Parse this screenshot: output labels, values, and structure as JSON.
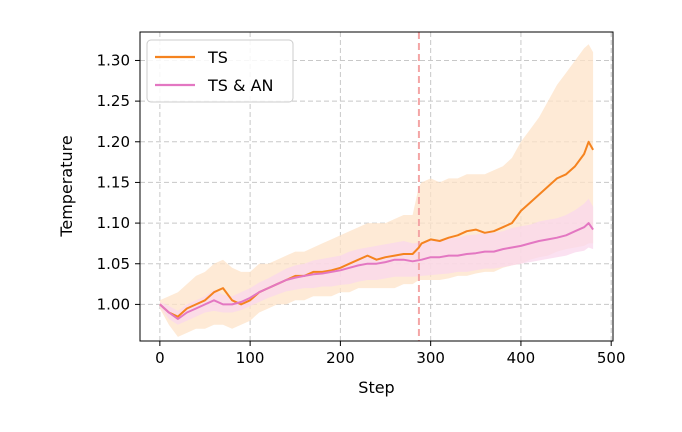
{
  "chart_data": {
    "type": "line",
    "xlabel": "Step",
    "ylabel": "Temperature",
    "xlim": [
      -22,
      502
    ],
    "ylim": [
      0.955,
      1.335
    ],
    "xticks": [
      0,
      100,
      200,
      300,
      400,
      500
    ],
    "xtick_labels": [
      "0",
      "100",
      "200",
      "300",
      "400",
      "500"
    ],
    "yticks": [
      1.0,
      1.05,
      1.1,
      1.15,
      1.2,
      1.25,
      1.3
    ],
    "ytick_labels": [
      "1.00",
      "1.05",
      "1.10",
      "1.15",
      "1.20",
      "1.25",
      "1.30"
    ],
    "grid": true,
    "legend_position": "top-left",
    "vertical_marker": {
      "x": 287,
      "color": "#f4a5a5",
      "style": "dashed"
    },
    "series": [
      {
        "name": "TS",
        "color": "#f5831f",
        "band_color": "#fde3c8",
        "x": [
          0,
          10,
          20,
          30,
          40,
          50,
          60,
          70,
          80,
          90,
          100,
          110,
          120,
          130,
          140,
          150,
          160,
          170,
          180,
          190,
          200,
          210,
          220,
          230,
          240,
          250,
          260,
          270,
          280,
          287,
          290,
          300,
          310,
          320,
          330,
          340,
          350,
          360,
          370,
          380,
          390,
          400,
          410,
          420,
          430,
          440,
          450,
          460,
          470,
          475,
          480
        ],
        "y": [
          1.0,
          0.99,
          0.985,
          0.995,
          1.0,
          1.005,
          1.015,
          1.02,
          1.005,
          1.0,
          1.005,
          1.015,
          1.02,
          1.025,
          1.03,
          1.035,
          1.035,
          1.04,
          1.04,
          1.042,
          1.045,
          1.05,
          1.055,
          1.06,
          1.055,
          1.058,
          1.06,
          1.062,
          1.062,
          1.07,
          1.075,
          1.08,
          1.078,
          1.082,
          1.085,
          1.09,
          1.092,
          1.088,
          1.09,
          1.095,
          1.1,
          1.115,
          1.125,
          1.135,
          1.145,
          1.155,
          1.16,
          1.17,
          1.185,
          1.2,
          1.19
        ],
        "lower": [
          0.995,
          0.975,
          0.96,
          0.965,
          0.97,
          0.97,
          0.975,
          0.975,
          0.97,
          0.975,
          0.98,
          0.99,
          0.995,
          1.0,
          1.0,
          1.005,
          1.005,
          1.01,
          1.01,
          1.01,
          1.015,
          1.015,
          1.02,
          1.02,
          1.02,
          1.02,
          1.02,
          1.025,
          1.025,
          1.03,
          1.03,
          1.03,
          1.03,
          1.032,
          1.035,
          1.035,
          1.038,
          1.04,
          1.04,
          1.045,
          1.048,
          1.05,
          1.055,
          1.058,
          1.06,
          1.065,
          1.068,
          1.07,
          1.072,
          1.075,
          1.075
        ],
        "upper": [
          1.005,
          1.01,
          1.015,
          1.025,
          1.035,
          1.04,
          1.05,
          1.055,
          1.045,
          1.04,
          1.04,
          1.05,
          1.05,
          1.055,
          1.06,
          1.065,
          1.065,
          1.07,
          1.075,
          1.08,
          1.085,
          1.09,
          1.095,
          1.1,
          1.1,
          1.1,
          1.105,
          1.11,
          1.11,
          1.145,
          1.15,
          1.155,
          1.15,
          1.155,
          1.155,
          1.16,
          1.16,
          1.16,
          1.165,
          1.17,
          1.18,
          1.2,
          1.215,
          1.23,
          1.25,
          1.27,
          1.285,
          1.3,
          1.315,
          1.32,
          1.31
        ]
      },
      {
        "name": "TS & AN",
        "color": "#e377c2",
        "band_color": "#f9d7ec",
        "x": [
          0,
          10,
          20,
          30,
          40,
          50,
          60,
          70,
          80,
          90,
          100,
          110,
          120,
          130,
          140,
          150,
          160,
          170,
          180,
          190,
          200,
          210,
          220,
          230,
          240,
          250,
          260,
          270,
          280,
          290,
          300,
          310,
          320,
          330,
          340,
          350,
          360,
          370,
          380,
          390,
          400,
          410,
          420,
          430,
          440,
          450,
          460,
          470,
          475,
          480
        ],
        "y": [
          1.0,
          0.99,
          0.982,
          0.99,
          0.995,
          1.0,
          1.005,
          1.0,
          1.0,
          1.003,
          1.008,
          1.015,
          1.02,
          1.025,
          1.03,
          1.033,
          1.035,
          1.037,
          1.038,
          1.04,
          1.042,
          1.045,
          1.048,
          1.05,
          1.05,
          1.052,
          1.055,
          1.055,
          1.053,
          1.055,
          1.058,
          1.058,
          1.06,
          1.06,
          1.062,
          1.063,
          1.065,
          1.065,
          1.068,
          1.07,
          1.072,
          1.075,
          1.078,
          1.08,
          1.082,
          1.085,
          1.09,
          1.095,
          1.1,
          1.092
        ],
        "lower": [
          0.997,
          0.982,
          0.975,
          0.98,
          0.985,
          0.99,
          0.992,
          0.99,
          0.99,
          0.993,
          0.998,
          1.003,
          1.008,
          1.012,
          1.016,
          1.018,
          1.02,
          1.02,
          1.022,
          1.022,
          1.024,
          1.025,
          1.028,
          1.03,
          1.03,
          1.032,
          1.034,
          1.034,
          1.034,
          1.035,
          1.036,
          1.037,
          1.038,
          1.04,
          1.04,
          1.042,
          1.044,
          1.044,
          1.046,
          1.048,
          1.05,
          1.052,
          1.054,
          1.056,
          1.058,
          1.06,
          1.064,
          1.066,
          1.07,
          1.068
        ],
        "upper": [
          1.003,
          0.998,
          0.992,
          1.0,
          1.005,
          1.01,
          1.018,
          1.012,
          1.01,
          1.015,
          1.02,
          1.027,
          1.032,
          1.038,
          1.044,
          1.048,
          1.05,
          1.054,
          1.056,
          1.058,
          1.06,
          1.065,
          1.068,
          1.07,
          1.072,
          1.074,
          1.076,
          1.078,
          1.075,
          1.076,
          1.08,
          1.08,
          1.082,
          1.082,
          1.085,
          1.086,
          1.088,
          1.088,
          1.09,
          1.094,
          1.096,
          1.098,
          1.102,
          1.104,
          1.106,
          1.11,
          1.116,
          1.124,
          1.13,
          1.12
        ]
      }
    ]
  }
}
